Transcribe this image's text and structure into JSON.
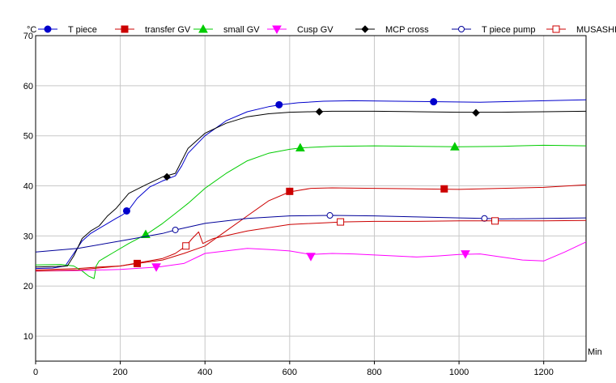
{
  "chart_data": {
    "type": "line",
    "title": "",
    "xlabel": "",
    "ylabel": "",
    "x_unit": "Min",
    "y_unit": "°C",
    "xlim": [
      0,
      1300
    ],
    "ylim": [
      5,
      70
    ],
    "x_ticks": [
      0,
      200,
      400,
      600,
      800,
      1000,
      1200
    ],
    "y_ticks": [
      10,
      20,
      30,
      40,
      50,
      60,
      70
    ],
    "x_tick_labels": [
      "0",
      "200",
      "400",
      "600",
      "800",
      "1000",
      "1200"
    ],
    "y_tick_labels": [
      "10",
      "20",
      "30",
      "40",
      "50",
      "60",
      "70"
    ],
    "grid": true,
    "legend_position": "top",
    "series": [
      {
        "name": "T piece",
        "color": "#0000cc",
        "marker": "circle-filled",
        "x": [
          0,
          40,
          70,
          90,
          110,
          130,
          150,
          170,
          190,
          205,
          218,
          240,
          270,
          300,
          330,
          345,
          360,
          400,
          450,
          500,
          550,
          580,
          620,
          680,
          750,
          850,
          950,
          1050,
          1150,
          1300
        ],
        "y": [
          23.5,
          23.6,
          24.0,
          26.5,
          29.0,
          30.5,
          31.5,
          32.5,
          33.5,
          34.2,
          35.0,
          37.5,
          39.8,
          41.0,
          42.0,
          44.0,
          46.5,
          50.0,
          53.0,
          54.8,
          55.8,
          56.2,
          56.6,
          56.9,
          57.0,
          56.9,
          56.8,
          56.7,
          56.9,
          57.2
        ],
        "marker_x": [
          215,
          575,
          940
        ],
        "marker_y": [
          35.0,
          56.2,
          56.8
        ]
      },
      {
        "name": "transfer GV",
        "color": "#cc0000",
        "marker": "square-filled",
        "x": [
          0,
          100,
          150,
          200,
          240,
          300,
          350,
          400,
          450,
          500,
          550,
          600,
          650,
          700,
          800,
          900,
          1000,
          1100,
          1200,
          1300
        ],
        "y": [
          23.2,
          23.5,
          23.8,
          24.0,
          24.5,
          25.2,
          26.5,
          28.0,
          31.0,
          34.0,
          37.0,
          38.8,
          39.5,
          39.6,
          39.5,
          39.4,
          39.3,
          39.5,
          39.7,
          40.2
        ],
        "marker_x": [
          240,
          600,
          965
        ],
        "marker_y": [
          24.5,
          38.9,
          39.4
        ]
      },
      {
        "name": "small GV",
        "color": "#00cc00",
        "marker": "triangle-up-filled",
        "x": [
          0,
          60,
          90,
          110,
          125,
          138,
          143,
          150,
          180,
          220,
          265,
          300,
          330,
          360,
          400,
          450,
          500,
          550,
          600,
          630,
          700,
          800,
          900,
          1000,
          1100,
          1200,
          1300
        ],
        "y": [
          24.2,
          24.3,
          24.0,
          23.0,
          22.0,
          21.5,
          24.0,
          25.0,
          26.5,
          28.5,
          30.5,
          32.5,
          34.5,
          36.5,
          39.5,
          42.5,
          45.0,
          46.5,
          47.3,
          47.6,
          47.9,
          48.0,
          47.9,
          47.8,
          47.9,
          48.1,
          48.0
        ],
        "marker_x": [
          260,
          625,
          990
        ],
        "marker_y": [
          30.3,
          47.6,
          47.8
        ]
      },
      {
        "name": "Cusp GV",
        "color": "#ff00ff",
        "marker": "triangle-down-filled",
        "x": [
          0,
          100,
          200,
          290,
          350,
          400,
          450,
          500,
          550,
          600,
          650,
          700,
          750,
          800,
          850,
          900,
          950,
          1000,
          1050,
          1100,
          1150,
          1200,
          1250,
          1300
        ],
        "y": [
          23.0,
          23.1,
          23.3,
          23.8,
          24.5,
          26.5,
          27.0,
          27.5,
          27.3,
          27.0,
          26.3,
          26.5,
          26.4,
          26.2,
          26.0,
          25.8,
          26.0,
          26.3,
          26.4,
          25.8,
          25.2,
          25.0,
          26.8,
          28.8
        ],
        "marker_x": [
          285,
          650,
          1015
        ],
        "marker_y": [
          23.8,
          25.9,
          26.4
        ]
      },
      {
        "name": "MCP cross",
        "color": "#000000",
        "marker": "diamond-filled",
        "x": [
          0,
          50,
          75,
          90,
          110,
          130,
          150,
          170,
          190,
          220,
          260,
          300,
          330,
          345,
          360,
          400,
          450,
          500,
          550,
          600,
          650,
          700,
          800,
          900,
          1000,
          1100,
          1200,
          1300
        ],
        "y": [
          23.8,
          23.9,
          24.0,
          26.0,
          29.5,
          31.0,
          32.0,
          34.0,
          35.5,
          38.5,
          40.2,
          41.8,
          42.5,
          45.0,
          47.5,
          50.5,
          52.5,
          53.8,
          54.4,
          54.7,
          54.8,
          54.9,
          54.9,
          54.8,
          54.7,
          54.7,
          54.8,
          54.9
        ],
        "marker_x": [
          310,
          670,
          1040
        ],
        "marker_y": [
          41.8,
          54.8,
          54.6
        ]
      },
      {
        "name": "T piece pump",
        "color": "#000099",
        "marker": "circle-open",
        "x": [
          0,
          100,
          200,
          300,
          330,
          400,
          500,
          600,
          700,
          800,
          900,
          1000,
          1060,
          1100,
          1200,
          1300
        ],
        "y": [
          26.8,
          27.5,
          29.0,
          30.5,
          31.2,
          32.5,
          33.5,
          34.0,
          34.1,
          34.0,
          33.8,
          33.6,
          33.5,
          33.4,
          33.5,
          33.6
        ],
        "marker_x": [
          330,
          695,
          1060
        ],
        "marker_y": [
          31.2,
          34.1,
          33.5
        ]
      },
      {
        "name": "MUSASHI GV",
        "color": "#cc0000",
        "marker": "square-open",
        "x": [
          0,
          100,
          200,
          300,
          330,
          355,
          370,
          385,
          395,
          420,
          500,
          600,
          700,
          720,
          800,
          900,
          1000,
          1085,
          1200,
          1300
        ],
        "y": [
          23.0,
          23.2,
          24.0,
          25.5,
          26.5,
          28.0,
          29.5,
          30.8,
          28.5,
          29.5,
          31.0,
          32.3,
          32.7,
          32.8,
          32.9,
          32.9,
          33.0,
          33.0,
          33.0,
          33.1
        ],
        "marker_x": [
          355,
          720,
          1085
        ],
        "marker_y": [
          28.0,
          32.8,
          33.0
        ]
      }
    ]
  }
}
